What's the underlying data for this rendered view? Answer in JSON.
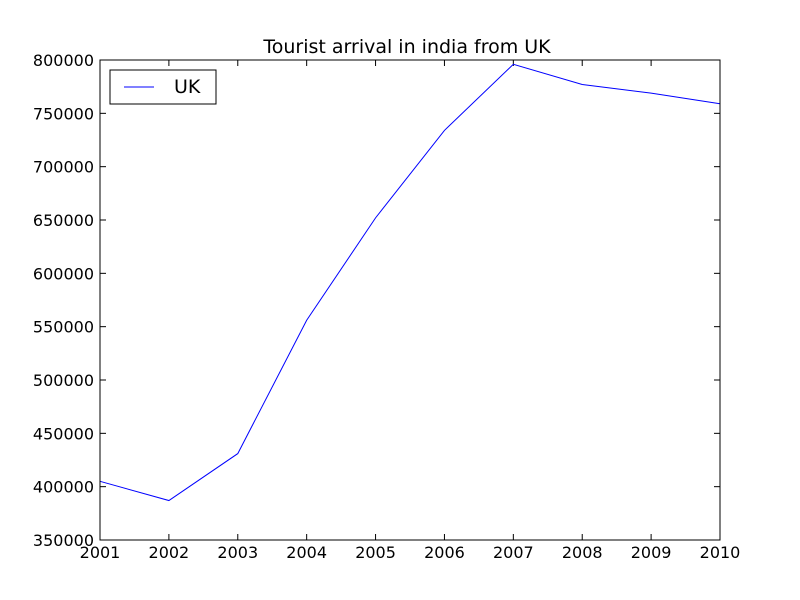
{
  "chart_data": {
    "type": "line",
    "title": "Tourist arrival in india from UK",
    "xlabel": "",
    "ylabel": "",
    "x": [
      2001,
      2002,
      2003,
      2004,
      2005,
      2006,
      2007,
      2008,
      2009,
      2010
    ],
    "series": [
      {
        "name": "UK",
        "color": "#0000ff",
        "values": [
          405000,
          387000,
          431000,
          556000,
          652000,
          734000,
          796000,
          777000,
          769000,
          759000
        ]
      }
    ],
    "xlim": [
      2001,
      2010
    ],
    "ylim": [
      350000,
      800000
    ],
    "xticks": [
      "2001",
      "2002",
      "2003",
      "2004",
      "2005",
      "2006",
      "2007",
      "2008",
      "2009",
      "2010"
    ],
    "yticks": [
      "350000",
      "400000",
      "450000",
      "500000",
      "550000",
      "600000",
      "650000",
      "700000",
      "750000",
      "800000"
    ],
    "grid": false,
    "legend_position": "top-left"
  }
}
